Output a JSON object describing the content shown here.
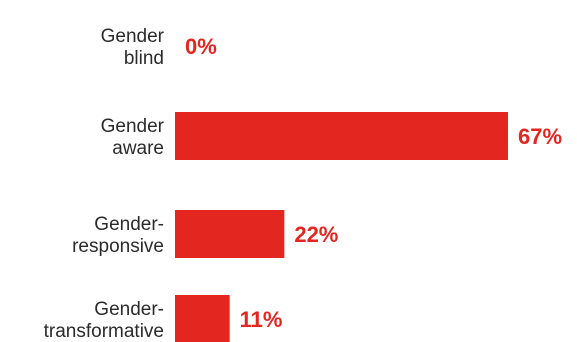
{
  "chart_data": {
    "type": "bar",
    "orientation": "horizontal",
    "categories": [
      [
        "Gender",
        "blind"
      ],
      [
        "Gender",
        "aware"
      ],
      [
        "Gender-",
        "responsive"
      ],
      [
        "Gender-",
        "transformative"
      ]
    ],
    "values": [
      0,
      67,
      22,
      11
    ],
    "value_labels": [
      "0%",
      "67%",
      "22%",
      "11%"
    ],
    "unit": "%",
    "xlim": [
      0,
      67
    ],
    "grid": false,
    "legend": "none",
    "bar_color": "#e3261f",
    "label_color": "#e3261f"
  }
}
